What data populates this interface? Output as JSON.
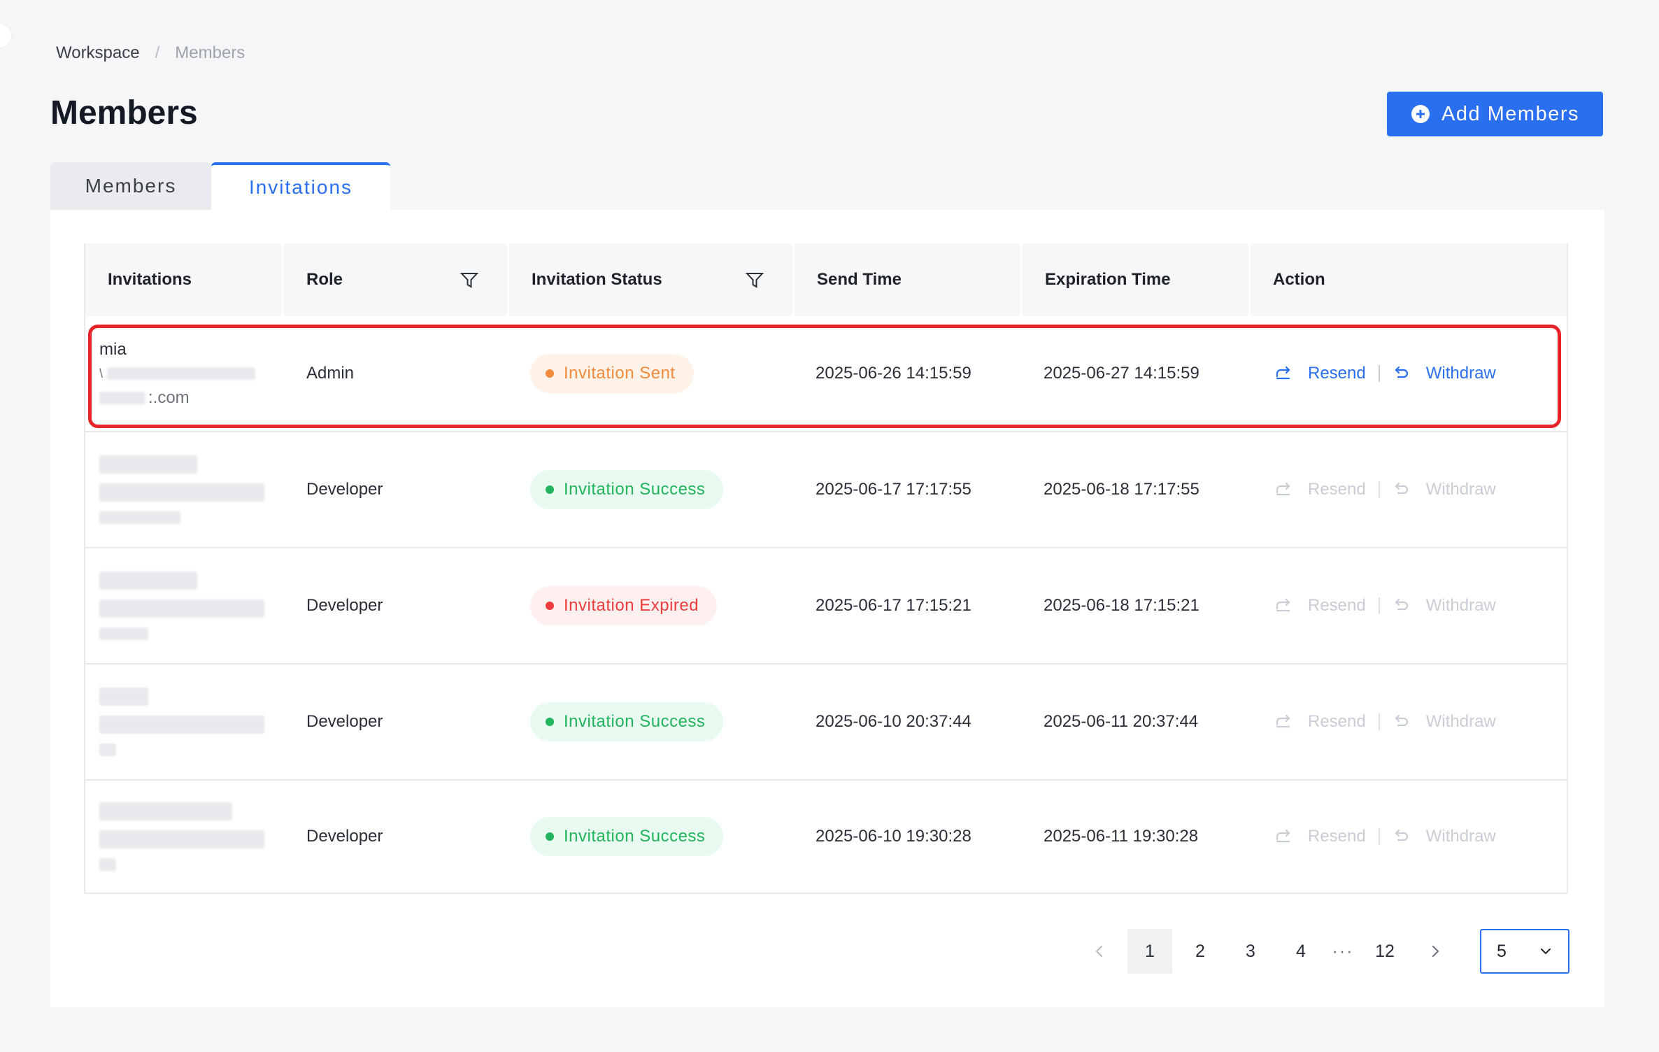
{
  "breadcrumb": {
    "root": "Workspace",
    "separator": "/",
    "current": "Members"
  },
  "page_title": "Members",
  "add_button_label": "Add Members",
  "tabs": [
    {
      "label": "Members"
    },
    {
      "label": "Invitations"
    }
  ],
  "table": {
    "headers": {
      "invitations": "Invitations",
      "role": "Role",
      "status": "Invitation Status",
      "send_time": "Send Time",
      "expiration_time": "Expiration Time",
      "action": "Action"
    },
    "rows": [
      {
        "name": "mia",
        "email_prefix": "\\",
        "email_suffix": ":.com",
        "role": "Admin",
        "status": "Invitation Sent",
        "send_time": "2025-06-26 14:15:59",
        "expiration_time": "2025-06-27 14:15:59",
        "resend": "Resend",
        "withdraw": "Withdraw"
      },
      {
        "role": "Developer",
        "status": "Invitation Success",
        "send_time": "2025-06-17 17:17:55",
        "expiration_time": "2025-06-18 17:17:55",
        "resend": "Resend",
        "withdraw": "Withdraw"
      },
      {
        "role": "Developer",
        "status": "Invitation Expired",
        "send_time": "2025-06-17 17:15:21",
        "expiration_time": "2025-06-18 17:15:21",
        "resend": "Resend",
        "withdraw": "Withdraw"
      },
      {
        "role": "Developer",
        "status": "Invitation Success",
        "send_time": "2025-06-10 20:37:44",
        "expiration_time": "2025-06-11 20:37:44",
        "resend": "Resend",
        "withdraw": "Withdraw"
      },
      {
        "role": "Developer",
        "status": "Invitation Success",
        "send_time": "2025-06-10 19:30:28",
        "expiration_time": "2025-06-11 19:30:28",
        "resend": "Resend",
        "withdraw": "Withdraw"
      }
    ]
  },
  "pagination": {
    "pages": [
      "1",
      "2",
      "3",
      "4"
    ],
    "ellipsis": "···",
    "last_page": "12",
    "page_size": "5"
  },
  "colors": {
    "accent": "#2b6ff1",
    "sent": "#f08a3c",
    "success": "#22b45c",
    "expired": "#ec3d3d",
    "highlight": "#e8242a"
  }
}
